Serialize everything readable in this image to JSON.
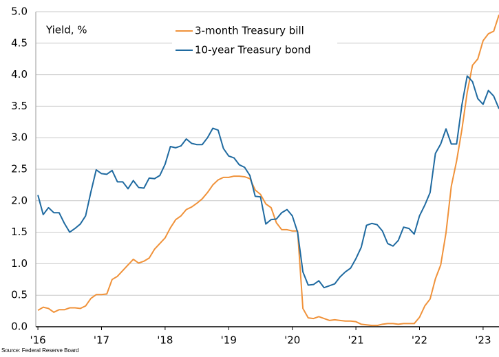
{
  "chart_data": {
    "type": "line",
    "axis_label": "Yield, %",
    "source": "Source: Federal Reserve Board",
    "x": [
      0,
      1,
      2,
      3,
      4,
      5,
      6,
      7,
      8,
      9,
      10,
      11,
      12,
      13,
      14,
      15,
      16,
      17,
      18,
      19,
      20,
      21,
      22,
      23,
      24,
      25,
      26,
      27,
      28,
      29,
      30,
      31,
      32,
      33,
      34,
      35,
      36,
      37,
      38,
      39,
      40,
      41,
      42,
      43,
      44,
      45,
      46,
      47,
      48,
      49,
      50,
      51,
      52,
      53,
      54,
      55,
      56,
      57,
      58,
      59,
      60,
      61,
      62,
      63,
      64,
      65,
      66,
      67,
      68,
      69,
      70,
      71,
      72,
      73,
      74,
      75,
      76,
      77,
      78,
      79,
      80,
      81,
      82,
      83,
      84,
      85,
      86,
      87
    ],
    "series": [
      {
        "name": "3-month Treasury bill",
        "color": "#f0923a",
        "values": [
          0.26,
          0.31,
          0.29,
          0.23,
          0.27,
          0.27,
          0.3,
          0.3,
          0.29,
          0.33,
          0.45,
          0.51,
          0.51,
          0.52,
          0.75,
          0.8,
          0.89,
          0.98,
          1.07,
          1.01,
          1.04,
          1.09,
          1.23,
          1.32,
          1.41,
          1.57,
          1.7,
          1.76,
          1.86,
          1.9,
          1.96,
          2.03,
          2.13,
          2.25,
          2.33,
          2.37,
          2.37,
          2.39,
          2.39,
          2.38,
          2.35,
          2.17,
          2.1,
          1.95,
          1.89,
          1.65,
          1.54,
          1.54,
          1.52,
          1.52,
          0.29,
          0.14,
          0.13,
          0.16,
          0.13,
          0.1,
          0.11,
          0.1,
          0.09,
          0.09,
          0.08,
          0.04,
          0.03,
          0.02,
          0.02,
          0.04,
          0.05,
          0.05,
          0.04,
          0.05,
          0.05,
          0.05,
          0.15,
          0.33,
          0.44,
          0.76,
          0.98,
          1.49,
          2.23,
          2.63,
          3.13,
          3.72,
          4.15,
          4.25,
          4.54,
          4.65,
          4.69,
          4.95
        ]
      },
      {
        "name": "10-year Treasury bond",
        "color": "#1f6aa0",
        "values": [
          2.09,
          1.78,
          1.89,
          1.81,
          1.81,
          1.64,
          1.5,
          1.56,
          1.63,
          1.76,
          2.14,
          2.49,
          2.43,
          2.42,
          2.48,
          2.3,
          2.3,
          2.19,
          2.32,
          2.21,
          2.2,
          2.36,
          2.35,
          2.4,
          2.58,
          2.86,
          2.84,
          2.87,
          2.98,
          2.91,
          2.89,
          2.89,
          3.0,
          3.15,
          3.12,
          2.83,
          2.71,
          2.68,
          2.57,
          2.53,
          2.4,
          2.07,
          2.06,
          1.63,
          1.7,
          1.71,
          1.81,
          1.86,
          1.76,
          1.5,
          0.87,
          0.66,
          0.67,
          0.73,
          0.62,
          0.65,
          0.68,
          0.79,
          0.87,
          0.93,
          1.08,
          1.26,
          1.61,
          1.64,
          1.62,
          1.52,
          1.32,
          1.28,
          1.37,
          1.58,
          1.56,
          1.47,
          1.76,
          1.93,
          2.13,
          2.75,
          2.9,
          3.14,
          2.9,
          2.9,
          3.52,
          3.98,
          3.89,
          3.62,
          3.53,
          3.75,
          3.66,
          3.46
        ]
      }
    ],
    "xlim": [
      -0.4,
      87
    ],
    "xticks": [
      {
        "value": 0,
        "label": "'16"
      },
      {
        "value": 12,
        "label": "'17"
      },
      {
        "value": 24,
        "label": "'18"
      },
      {
        "value": 36,
        "label": "'19"
      },
      {
        "value": 48,
        "label": "'20"
      },
      {
        "value": 60,
        "label": "'21"
      },
      {
        "value": 72,
        "label": "'22"
      },
      {
        "value": 84,
        "label": "'23"
      }
    ],
    "ylim": [
      0,
      5
    ],
    "yticks": [
      {
        "value": 0,
        "label": "0.0"
      },
      {
        "value": 0.5,
        "label": "0.5"
      },
      {
        "value": 1,
        "label": "1.0"
      },
      {
        "value": 1.5,
        "label": "1.5"
      },
      {
        "value": 2,
        "label": "2.0"
      },
      {
        "value": 2.5,
        "label": "2.5"
      },
      {
        "value": 3,
        "label": "3.0"
      },
      {
        "value": 3.5,
        "label": "3.5"
      },
      {
        "value": 4,
        "label": "4.0"
      },
      {
        "value": 4.5,
        "label": "4.5"
      },
      {
        "value": 5,
        "label": "5.0"
      }
    ],
    "grid": true
  }
}
